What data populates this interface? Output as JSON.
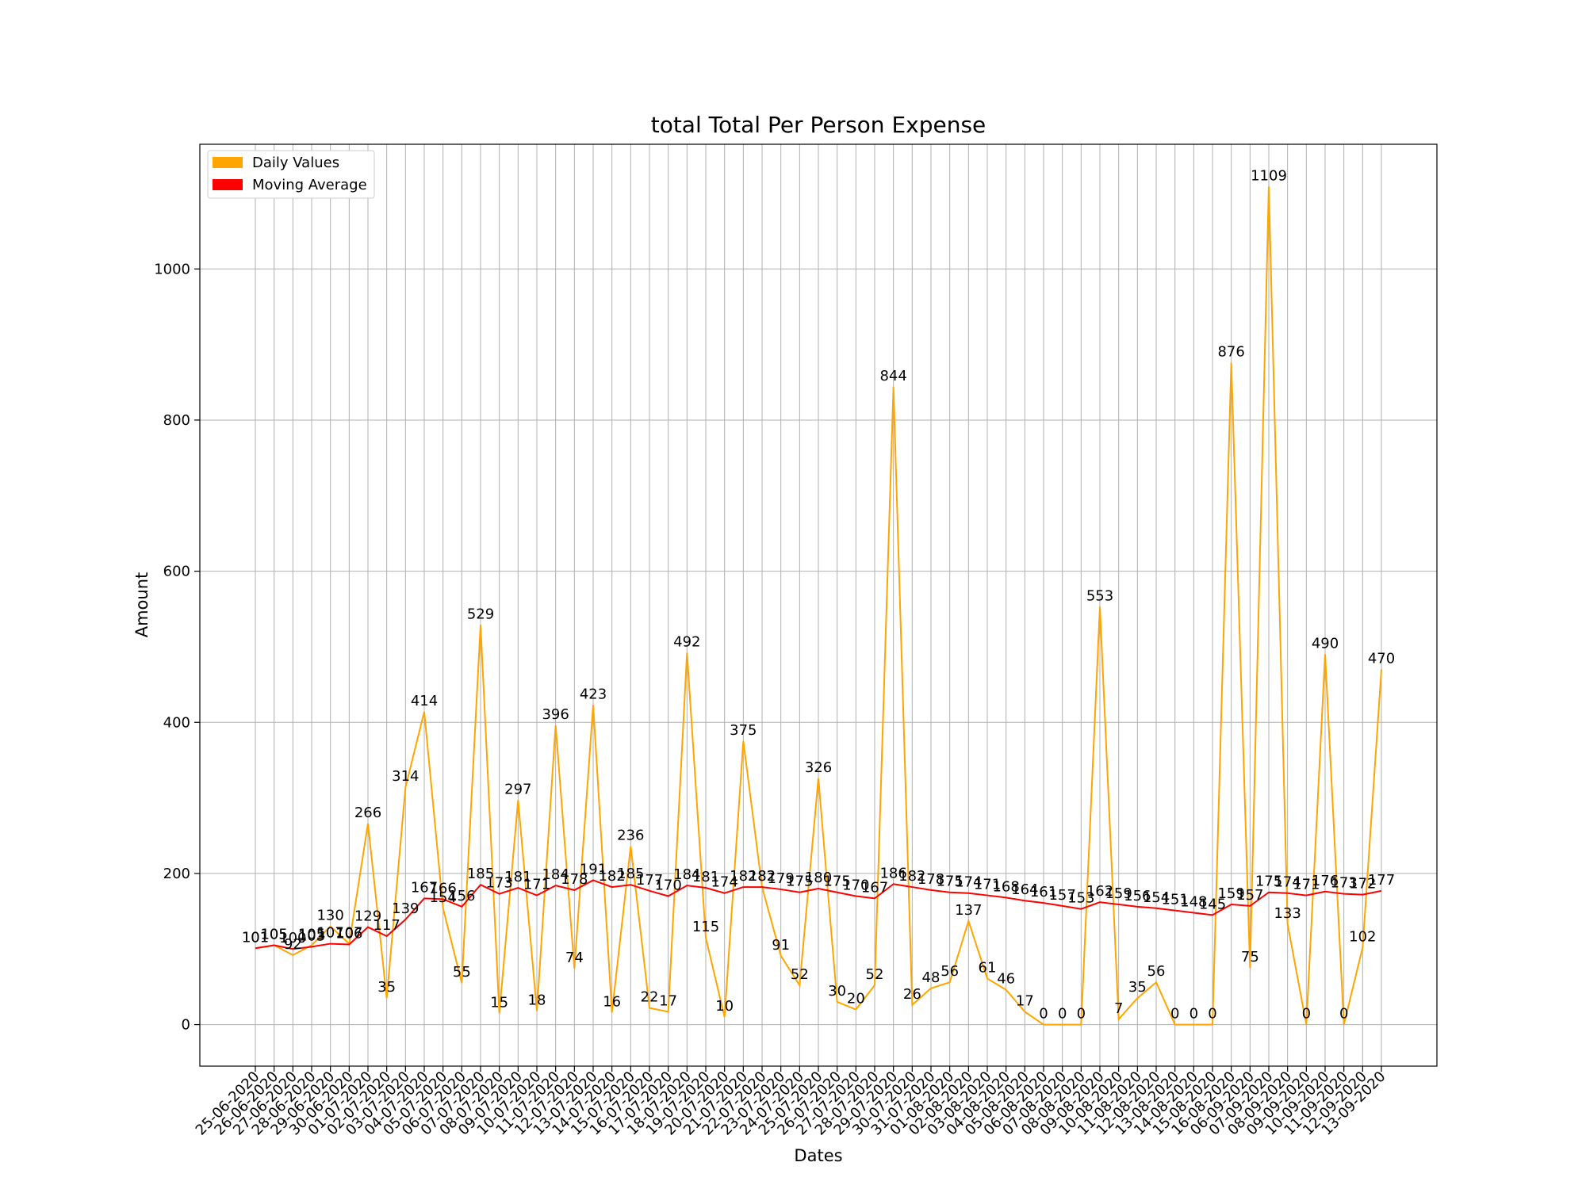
{
  "chart_data": {
    "type": "line",
    "title": "total Total Per Person Expense",
    "xlabel": "Dates",
    "ylabel": "Amount",
    "ylim": [
      -55,
      1165
    ],
    "y_ticks": [
      0,
      200,
      400,
      600,
      800,
      1000
    ],
    "grid": true,
    "legend_position": "top-left",
    "categories": [
      "25-06-2020",
      "26-06-2020",
      "27-06-2020",
      "28-06-2020",
      "29-06-2020",
      "30-06-2020",
      "01-07-2020",
      "02-07-2020",
      "03-07-2020",
      "04-07-2020",
      "05-07-2020",
      "06-07-2020",
      "07-07-2020",
      "08-07-2020",
      "09-07-2020",
      "10-07-2020",
      "11-07-2020",
      "12-07-2020",
      "13-07-2020",
      "14-07-2020",
      "15-07-2020",
      "16-07-2020",
      "17-07-2020",
      "18-07-2020",
      "19-07-2020",
      "20-07-2020",
      "21-07-2020",
      "22-07-2020",
      "23-07-2020",
      "24-07-2020",
      "25-07-2020",
      "26-07-2020",
      "27-07-2020",
      "28-07-2020",
      "29-07-2020",
      "30-07-2020",
      "31-07-2020",
      "01-08-2020",
      "02-08-2020",
      "03-08-2020",
      "04-08-2020",
      "05-08-2020",
      "06-08-2020",
      "07-08-2020",
      "08-08-2020",
      "09-08-2020",
      "10-08-2020",
      "11-08-2020",
      "12-08-2020",
      "13-08-2020",
      "14-08-2020",
      "15-08-2020",
      "16-08-2020",
      "06-09-2020",
      "07-09-2020",
      "08-09-2020",
      "09-09-2020",
      "10-09-2020",
      "11-09-2020",
      "12-09-2020",
      "13-09-2020"
    ],
    "series": [
      {
        "name": "Daily Values",
        "color": "#ffa500",
        "values": [
          101,
          105,
          92,
          105,
          130,
          107,
          266,
          35,
          314,
          414,
          154,
          55,
          529,
          15,
          297,
          18,
          396,
          74,
          423,
          16,
          236,
          22,
          17,
          492,
          115,
          10,
          375,
          182,
          91,
          52,
          326,
          30,
          20,
          52,
          844,
          26,
          48,
          56,
          137,
          61,
          46,
          17,
          0,
          0,
          0,
          553,
          7,
          35,
          56,
          0,
          0,
          0,
          876,
          75,
          1109,
          133,
          0,
          490,
          0,
          102,
          470
        ]
      },
      {
        "name": "Moving Average",
        "color": "#ff0000",
        "values": [
          101,
          105,
          100,
          103,
          107,
          106,
          129,
          117,
          139,
          167,
          166,
          156,
          185,
          173,
          181,
          171,
          184,
          178,
          191,
          182,
          185,
          177,
          170,
          184,
          181,
          174,
          182,
          182,
          179,
          175,
          180,
          175,
          170,
          167,
          186,
          182,
          178,
          175,
          174,
          171,
          168,
          164,
          161,
          157,
          153,
          162,
          159,
          156,
          154,
          151,
          148,
          145,
          159,
          157,
          175,
          174,
          171,
          176,
          173,
          172,
          177
        ]
      }
    ]
  }
}
